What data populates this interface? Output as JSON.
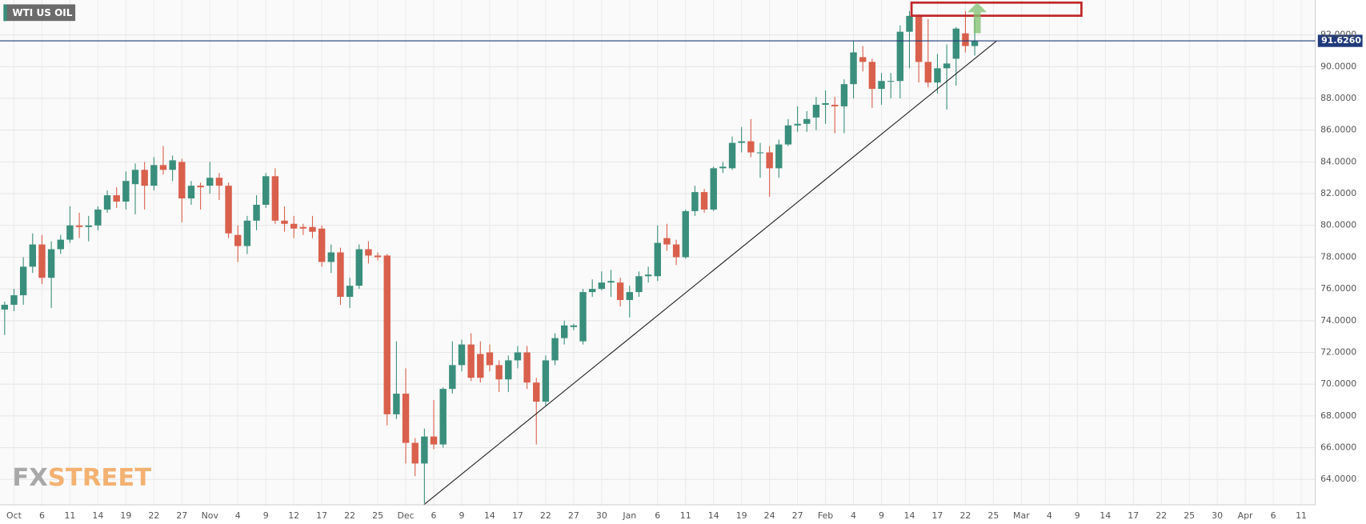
{
  "chart_data": {
    "type": "candlestick",
    "categories": [
      null,
      "Oct",
      null,
      null,
      "6",
      null,
      null,
      "11",
      null,
      null,
      "14",
      null,
      null,
      "19",
      null,
      null,
      "22",
      null,
      null,
      "27",
      null,
      null,
      "Nov",
      null,
      null,
      "4",
      null,
      null,
      "9",
      null,
      null,
      "12",
      null,
      null,
      "17",
      null,
      null,
      "22",
      null,
      null,
      "25",
      null,
      null,
      "Dec",
      null,
      null,
      "6",
      null,
      null,
      "9",
      null,
      null,
      "14",
      null,
      null,
      "17",
      null,
      null,
      "22",
      null,
      null,
      "27",
      null,
      null,
      "30",
      null,
      null,
      "Jan",
      null,
      null,
      "6",
      null,
      null,
      "11",
      null,
      null,
      "14",
      null,
      null,
      "19",
      null,
      null,
      "24",
      null,
      null,
      "27",
      null,
      null,
      "Feb",
      null,
      null,
      "4",
      null,
      null,
      "9",
      null,
      null,
      "14",
      null,
      null,
      "17",
      null,
      null,
      "22",
      null,
      null,
      "25",
      null,
      null,
      "Mar",
      null,
      null,
      "4",
      null,
      null,
      "9",
      null,
      null,
      "14",
      null,
      null,
      "17",
      null,
      null,
      "22",
      null,
      null,
      "25",
      null,
      null,
      "30",
      null,
      null,
      "Apr",
      null,
      null,
      "6",
      null,
      null,
      "11",
      null
    ],
    "series": [
      {
        "name": "WTI US OIL",
        "up_color": "#3a8f7c",
        "down_color": "#d9604c",
        "open": [
          74.7,
          75.0,
          75.6,
          77.4,
          78.8,
          76.7,
          78.5,
          79.1,
          80.0,
          79.9,
          80.0,
          81.0,
          81.9,
          81.5,
          82.6,
          83.5,
          82.5,
          83.8,
          83.5,
          84.0,
          81.7,
          82.5,
          82.5,
          83.0,
          82.5,
          79.4,
          78.7,
          80.3,
          81.3,
          83.1,
          80.3,
          80.1,
          79.9,
          79.9,
          79.8,
          77.7,
          78.3,
          75.5,
          76.2,
          78.5,
          78.1,
          78.1,
          68.1,
          69.4,
          66.3,
          65.0,
          66.7,
          66.2,
          69.7,
          71.2,
          72.5,
          71.9,
          72.0,
          71.2,
          70.3,
          71.5,
          72.0,
          70.1,
          68.9,
          71.5,
          72.9,
          73.6,
          72.7,
          75.8,
          76.0,
          76.4,
          76.4,
          75.3,
          75.8,
          76.8,
          76.8,
          79.2,
          78.8,
          78.0,
          80.9,
          82.1,
          81.0,
          83.6,
          83.6,
          85.2,
          85.3,
          84.6,
          84.6,
          83.6,
          85.1,
          86.3,
          86.4,
          86.8,
          87.6,
          87.6,
          87.5,
          88.9,
          90.6,
          90.3,
          88.6,
          89.1,
          89.1,
          92.2,
          93.2,
          90.3,
          89.0,
          89.9,
          90.5,
          92.1,
          91.3,
          null,
          null,
          null,
          null,
          null,
          null,
          null,
          null,
          null,
          null,
          null,
          null,
          null,
          null,
          null,
          null,
          null,
          null,
          null,
          null,
          null,
          null,
          null,
          null,
          null,
          null,
          null,
          null,
          null,
          null,
          null,
          null,
          null,
          null,
          null,
          null
        ],
        "high": [
          75.2,
          76.0,
          78.0,
          79.5,
          79.4,
          79.0,
          79.4,
          81.2,
          80.8,
          80.6,
          81.2,
          82.2,
          82.4,
          83.4,
          83.9,
          84.0,
          84.3,
          85.0,
          84.4,
          84.2,
          82.8,
          82.7,
          84.0,
          83.3,
          82.7,
          80.0,
          80.6,
          81.9,
          83.3,
          83.6,
          81.2,
          80.6,
          80.1,
          80.6,
          80.0,
          78.8,
          78.6,
          76.7,
          78.8,
          79.0,
          78.3,
          78.2,
          72.7,
          71.0,
          66.6,
          67.2,
          69.0,
          69.8,
          72.7,
          72.8,
          73.2,
          72.7,
          72.5,
          71.5,
          71.8,
          72.4,
          72.4,
          70.4,
          71.8,
          73.2,
          74.0,
          73.8,
          76.0,
          76.6,
          77.1,
          77.2,
          76.7,
          76.2,
          77.1,
          77.4,
          80.0,
          80.1,
          79.1,
          81.0,
          82.5,
          82.3,
          83.7,
          84.0,
          85.6,
          86.2,
          86.7,
          85.2,
          85.0,
          85.4,
          86.7,
          87.5,
          87.2,
          88.1,
          88.5,
          88.1,
          89.2,
          91.6,
          91.3,
          90.5,
          89.6,
          89.6,
          92.6,
          93.5,
          93.3,
          93.0,
          90.8,
          91.4,
          92.5,
          93.5,
          93.0,
          null,
          null,
          null,
          null,
          null,
          null,
          null,
          null,
          null,
          null,
          null,
          null,
          null,
          null,
          null,
          null,
          null,
          null,
          null,
          null,
          null,
          null,
          null,
          null,
          null,
          null,
          null,
          null,
          null,
          null,
          null,
          null,
          null,
          null,
          null,
          null
        ],
        "low": [
          73.1,
          74.6,
          75.0,
          77.0,
          76.3,
          74.8,
          78.2,
          78.9,
          79.2,
          79.0,
          79.7,
          80.8,
          81.1,
          81.0,
          80.7,
          81.0,
          82.2,
          83.2,
          82.8,
          80.2,
          81.3,
          81.0,
          82.0,
          81.6,
          79.2,
          77.7,
          78.2,
          79.7,
          81.1,
          80.1,
          79.6,
          79.2,
          79.4,
          79.2,
          77.4,
          77.0,
          75.0,
          74.8,
          76.0,
          77.6,
          77.8,
          67.4,
          67.8,
          65.0,
          64.2,
          62.5,
          65.9,
          66.0,
          69.4,
          70.8,
          70.2,
          70.1,
          70.8,
          69.5,
          69.5,
          71.0,
          69.7,
          66.2,
          68.6,
          71.2,
          72.5,
          73.4,
          72.5,
          75.5,
          75.9,
          75.5,
          74.9,
          74.2,
          75.5,
          76.4,
          76.5,
          78.4,
          77.5,
          77.9,
          80.6,
          80.8,
          80.9,
          83.3,
          83.5,
          84.6,
          84.3,
          83.0,
          81.8,
          83.0,
          85.0,
          85.9,
          85.9,
          86.0,
          86.4,
          85.8,
          85.8,
          88.0,
          89.7,
          87.4,
          87.6,
          88.0,
          88.0,
          89.9,
          89.0,
          88.7,
          88.3,
          87.3,
          88.8,
          90.9,
          90.7,
          null,
          null,
          null,
          null,
          null,
          null,
          null,
          null,
          null,
          null,
          null,
          null,
          null,
          null,
          null,
          null,
          null,
          null,
          null,
          null,
          null,
          null,
          null,
          null,
          null,
          null,
          null,
          null,
          null,
          null,
          null,
          null,
          null,
          null,
          null,
          null
        ],
        "close": [
          75.0,
          75.6,
          77.4,
          78.8,
          76.7,
          78.5,
          79.1,
          80.0,
          79.9,
          80.0,
          81.0,
          81.9,
          81.5,
          82.8,
          83.5,
          82.5,
          83.8,
          83.5,
          84.1,
          81.7,
          82.5,
          82.4,
          83.0,
          82.5,
          79.5,
          78.7,
          80.3,
          81.3,
          83.1,
          80.3,
          80.1,
          79.8,
          79.8,
          79.6,
          77.7,
          78.3,
          75.5,
          76.2,
          78.5,
          78.1,
          78.0,
          68.1,
          69.4,
          66.3,
          65.0,
          66.7,
          66.2,
          69.7,
          71.2,
          72.5,
          70.4,
          70.4,
          71.2,
          70.3,
          71.5,
          72.0,
          70.1,
          68.9,
          71.5,
          72.9,
          73.7,
          73.7,
          75.8,
          76.0,
          76.4,
          76.5,
          75.3,
          75.8,
          76.8,
          76.9,
          78.9,
          78.8,
          78.0,
          80.9,
          82.1,
          81.0,
          83.6,
          83.7,
          85.2,
          85.3,
          84.6,
          84.6,
          83.6,
          85.1,
          86.3,
          86.4,
          86.7,
          87.6,
          87.7,
          87.5,
          88.9,
          90.9,
          90.3,
          88.6,
          89.1,
          89.1,
          92.2,
          93.2,
          90.3,
          89.0,
          89.9,
          90.2,
          92.4,
          91.3,
          91.6,
          null,
          null,
          null,
          null,
          null,
          null,
          null,
          null,
          null,
          null,
          null,
          null,
          null,
          null,
          null,
          null,
          null,
          null,
          null,
          null,
          null,
          null,
          null,
          null,
          null,
          null,
          null,
          null,
          null,
          null,
          null,
          null,
          null,
          null,
          null,
          null
        ]
      }
    ],
    "ylim": [
      62.4,
      94.2
    ],
    "yticks": [
      {
        "value": 64,
        "label": "64.0000"
      },
      {
        "value": 66,
        "label": "66.0000"
      },
      {
        "value": 68,
        "label": "68.0000"
      },
      {
        "value": 70,
        "label": "70.0000"
      },
      {
        "value": 72,
        "label": "72.0000"
      },
      {
        "value": 74,
        "label": "74.0000"
      },
      {
        "value": 76,
        "label": "76.0000"
      },
      {
        "value": 78,
        "label": "78.0000"
      },
      {
        "value": 80,
        "label": "80.0000"
      },
      {
        "value": 82,
        "label": "82.0000"
      },
      {
        "value": 84,
        "label": "84.0000"
      },
      {
        "value": 86,
        "label": "86.0000"
      },
      {
        "value": 88,
        "label": "88.0000"
      },
      {
        "value": 90,
        "label": "90.0000"
      },
      {
        "value": 92,
        "label": "92.0000"
      }
    ],
    "grid": true,
    "current_price": {
      "value": 91.626,
      "label": "91.6260"
    },
    "watermark": [
      "FX",
      "STREET"
    ]
  }
}
